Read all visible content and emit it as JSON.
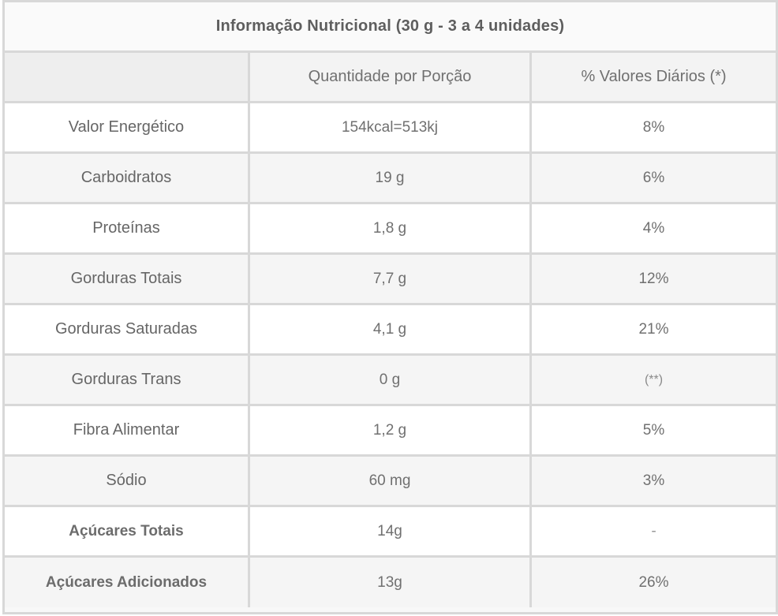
{
  "table": {
    "title": "Informação Nutricional (30 g - 3 a 4 unidades)",
    "headers": [
      "",
      "Quantidade por Porção",
      "% Valores Diários (*)"
    ],
    "rows": [
      {
        "label": "Valor Energético",
        "qty": "154kcal=513kj",
        "dv": "8%"
      },
      {
        "label": "Carboidratos",
        "qty": "19 g",
        "dv": "6%"
      },
      {
        "label": "Proteínas",
        "qty": "1,8 g",
        "dv": "4%"
      },
      {
        "label": "Gorduras Totais",
        "qty": "7,7 g",
        "dv": "12%"
      },
      {
        "label": "Gorduras Saturadas",
        "qty": "4,1 g",
        "dv": "21%"
      },
      {
        "label": "Gorduras Trans",
        "qty": "0 g",
        "dv": "(**)"
      },
      {
        "label": "Fibra Alimentar",
        "qty": "1,2 g",
        "dv": "5%"
      },
      {
        "label": "Sódio",
        "qty": "60 mg",
        "dv": "3%"
      },
      {
        "label": "Açúcares Totais",
        "qty": "14g",
        "dv": "-"
      },
      {
        "label": "Açúcares Adicionados",
        "qty": "13g",
        "dv": "26%"
      }
    ]
  }
}
